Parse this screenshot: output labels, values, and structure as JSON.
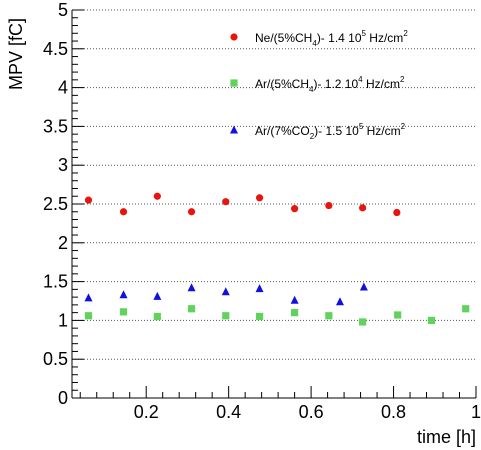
{
  "chart_data": {
    "type": "scatter",
    "xlabel": "time [h]",
    "ylabel": "MPV [fC]",
    "xlim": [
      0.02,
      1.0
    ],
    "ylim": [
      0,
      5
    ],
    "x_ticks": [
      0.2,
      0.4,
      0.6,
      0.8,
      1
    ],
    "x_tick_labels": [
      "0.2",
      "0.4",
      "0.6",
      "0.8",
      "1"
    ],
    "y_ticks": [
      0,
      0.5,
      1,
      1.5,
      2,
      2.5,
      3,
      3.5,
      4,
      4.5,
      5
    ],
    "y_tick_labels": [
      "0",
      "0.5",
      "1",
      "1.5",
      "2",
      "2.5",
      "3",
      "3.5",
      "4",
      "4.5",
      "5"
    ],
    "grid": "horizontal dotted",
    "legend_position": "top-right",
    "series": [
      {
        "name": "Ne/(5%CH4)- 1.4 10^5 Hz/cm^2",
        "legend_parts": {
          "a": "Ne/(5%CH",
          "sub": "4",
          "b": ")- 1.4 10",
          "sup": "5",
          "c": " Hz/cm",
          "sup2": "2"
        },
        "marker": "circle",
        "color": "#e8140f",
        "x": [
          0.06,
          0.145,
          0.227,
          0.31,
          0.393,
          0.475,
          0.56,
          0.643,
          0.725,
          0.808
        ],
        "y": [
          2.55,
          2.4,
          2.6,
          2.4,
          2.53,
          2.58,
          2.44,
          2.48,
          2.45,
          2.39
        ]
      },
      {
        "name": "Ar/(5%CH4)- 1.2 10^4 Hz/cm^2",
        "legend_parts": {
          "a": "Ar/(5%CH",
          "sub": "4",
          "b": ")- 1.2 10",
          "sup": "4",
          "c": " Hz/cm",
          "sup2": "2"
        },
        "marker": "square",
        "color": "#5fd35a",
        "x": [
          0.06,
          0.145,
          0.227,
          0.31,
          0.393,
          0.475,
          0.56,
          0.643,
          0.725,
          0.81,
          0.892,
          0.975
        ],
        "y": [
          1.06,
          1.11,
          1.05,
          1.15,
          1.06,
          1.05,
          1.1,
          1.06,
          0.98,
          1.07,
          1.0,
          1.15
        ]
      },
      {
        "name": "Ar/(7%CO2)- 1.5 10^5 Hz/cm^2",
        "legend_parts": {
          "a": "Ar/(7%CO",
          "sub": "2",
          "b": ")- 1.5 10",
          "sup": "5",
          "c": " Hz/cm",
          "sup2": "2"
        },
        "marker": "triangle",
        "color": "#1010e0",
        "x": [
          0.06,
          0.145,
          0.227,
          0.31,
          0.393,
          0.475,
          0.56,
          0.67,
          0.728
        ],
        "y": [
          1.29,
          1.33,
          1.31,
          1.42,
          1.37,
          1.41,
          1.26,
          1.24,
          1.43
        ]
      }
    ]
  }
}
